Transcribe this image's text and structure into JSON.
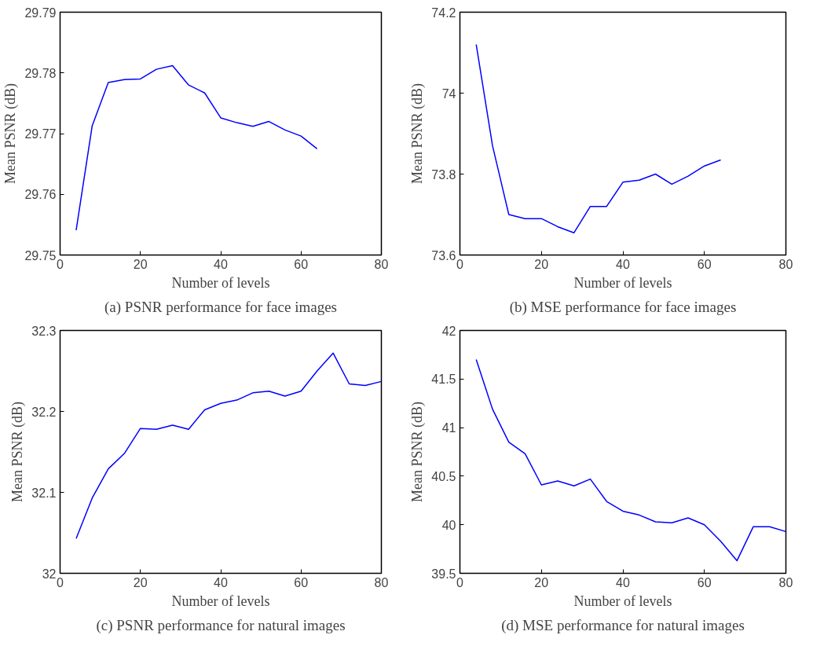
{
  "chart_data": [
    {
      "type": "line",
      "xlabel": "Number of levels",
      "ylabel": "Mean PSNR (dB)",
      "annotations": [
        "(a) PSNR performance for face images"
      ],
      "color": "#0000ff",
      "x": [
        4,
        8,
        12,
        16,
        20,
        24,
        28,
        32,
        36,
        40,
        44,
        48,
        52,
        56,
        60,
        64
      ],
      "values": [
        29.7541,
        29.7713,
        29.7784,
        29.7789,
        29.779,
        29.7806,
        29.7812,
        29.778,
        29.7767,
        29.7726,
        29.7718,
        29.7712,
        29.772,
        29.7706,
        29.7696,
        29.7675
      ],
      "xlim": [
        0,
        80
      ],
      "ylim": [
        29.75,
        29.79
      ],
      "xticks": [
        0,
        20,
        40,
        60,
        80
      ],
      "yticks": [
        29.75,
        29.76,
        29.77,
        29.78,
        29.79
      ],
      "grid": false
    },
    {
      "type": "line",
      "xlabel": "Number of levels",
      "ylabel": "Mean PSNR (dB)",
      "annotations": [
        "(b) MSE performance for face images"
      ],
      "color": "#0000ff",
      "x": [
        4,
        8,
        12,
        16,
        20,
        24,
        28,
        32,
        36,
        40,
        44,
        48,
        52,
        56,
        60,
        64
      ],
      "values": [
        74.12,
        73.87,
        73.7,
        73.69,
        73.69,
        73.67,
        73.655,
        73.72,
        73.72,
        73.78,
        73.785,
        73.8,
        73.775,
        73.795,
        73.82,
        73.835
      ],
      "xlim": [
        0,
        80
      ],
      "ylim": [
        73.6,
        74.2
      ],
      "xticks": [
        0,
        20,
        40,
        60,
        80
      ],
      "yticks": [
        73.6,
        73.8,
        74,
        74.2
      ],
      "grid": false
    },
    {
      "type": "line",
      "xlabel": "Number of levels",
      "ylabel": "Mean PSNR (dB)",
      "annotations": [
        "(c) PSNR performance for natural images"
      ],
      "color": "#0000ff",
      "x": [
        4,
        8,
        12,
        16,
        20,
        24,
        28,
        32,
        36,
        40,
        44,
        48,
        52,
        56,
        60,
        64,
        68,
        72,
        76,
        80
      ],
      "values": [
        32.043,
        32.093,
        32.129,
        32.148,
        32.179,
        32.178,
        32.183,
        32.178,
        32.202,
        32.21,
        32.214,
        32.223,
        32.225,
        32.219,
        32.225,
        32.25,
        32.272,
        32.234,
        32.232,
        32.237
      ],
      "xlim": [
        0,
        80
      ],
      "ylim": [
        32,
        32.3
      ],
      "xticks": [
        0,
        20,
        40,
        60,
        80
      ],
      "yticks": [
        32,
        32.1,
        32.2,
        32.3
      ],
      "grid": false
    },
    {
      "type": "line",
      "xlabel": "Number of levels",
      "ylabel": "Mean PSNR (dB)",
      "annotations": [
        "(d) MSE performance for natural images"
      ],
      "color": "#0000ff",
      "x": [
        4,
        8,
        12,
        16,
        20,
        24,
        28,
        32,
        36,
        40,
        44,
        48,
        52,
        56,
        60,
        64,
        68,
        72,
        76,
        80
      ],
      "values": [
        41.7,
        41.19,
        40.85,
        40.73,
        40.41,
        40.45,
        40.4,
        40.47,
        40.24,
        40.14,
        40.1,
        40.03,
        40.02,
        40.07,
        40.0,
        39.83,
        39.63,
        39.98,
        39.98,
        39.93
      ],
      "xlim": [
        0,
        80
      ],
      "ylim": [
        39.5,
        42
      ],
      "xticks": [
        0,
        20,
        40,
        60,
        80
      ],
      "yticks": [
        39.5,
        40,
        40.5,
        41,
        41.5,
        42
      ],
      "grid": false
    }
  ]
}
